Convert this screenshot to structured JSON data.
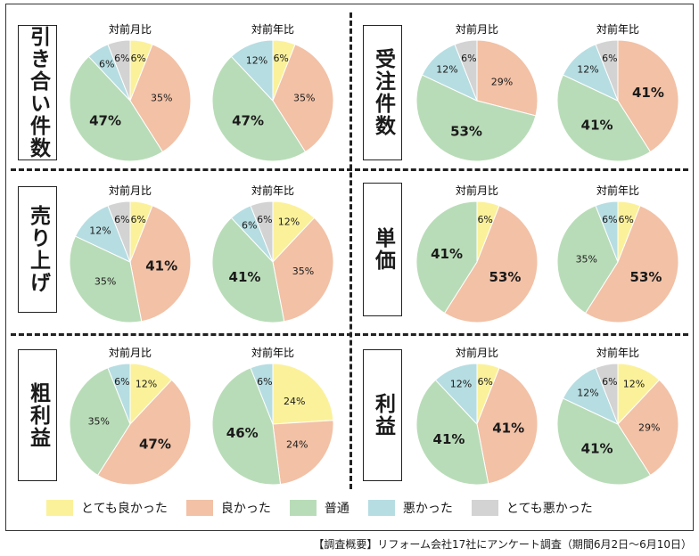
{
  "colors": {
    "very_good": "#fbf19b",
    "good": "#f2c1a6",
    "normal": "#b9dcb8",
    "bad": "#b6dde2",
    "very_bad": "#d3d3d3"
  },
  "legend": [
    {
      "key": "very_good",
      "label": "とても良かった"
    },
    {
      "key": "good",
      "label": "良かった"
    },
    {
      "key": "normal",
      "label": "普通"
    },
    {
      "key": "bad",
      "label": "悪かった"
    },
    {
      "key": "very_bad",
      "label": "とても悪かった"
    }
  ],
  "panels": [
    {
      "title": "引き合い件数"
    },
    {
      "title": "受注件数"
    },
    {
      "title": "売り上げ"
    },
    {
      "title": "単価"
    },
    {
      "title": "粗利益"
    },
    {
      "title": "利益"
    }
  ],
  "footer": "【調査概要】リフォーム会社17社にアンケート調査（期間6月2日〜6月10日）",
  "chart_data": [
    {
      "type": "pie",
      "panel": "引き合い件数",
      "title": "対前月比",
      "categories": [
        "とても良かった",
        "良かった",
        "普通",
        "悪かった",
        "とても悪かった"
      ],
      "values": [
        6,
        35,
        47,
        6,
        6
      ]
    },
    {
      "type": "pie",
      "panel": "引き合い件数",
      "title": "対前年比",
      "categories": [
        "とても良かった",
        "良かった",
        "普通",
        "悪かった",
        "とても悪かった"
      ],
      "values": [
        6,
        35,
        47,
        12,
        0
      ]
    },
    {
      "type": "pie",
      "panel": "受注件数",
      "title": "対前月比",
      "categories": [
        "とても良かった",
        "良かった",
        "普通",
        "悪かった",
        "とても悪かった"
      ],
      "values": [
        0,
        29,
        53,
        12,
        6
      ]
    },
    {
      "type": "pie",
      "panel": "受注件数",
      "title": "対前年比",
      "categories": [
        "とても良かった",
        "良かった",
        "普通",
        "悪かった",
        "とても悪かった"
      ],
      "values": [
        0,
        41,
        41,
        12,
        6
      ]
    },
    {
      "type": "pie",
      "panel": "売り上げ",
      "title": "対前月比",
      "categories": [
        "とても良かった",
        "良かった",
        "普通",
        "悪かった",
        "とても悪かった"
      ],
      "values": [
        6,
        41,
        35,
        12,
        6
      ]
    },
    {
      "type": "pie",
      "panel": "売り上げ",
      "title": "対前年比",
      "categories": [
        "とても良かった",
        "良かった",
        "普通",
        "悪かった",
        "とても悪かった"
      ],
      "values": [
        12,
        35,
        41,
        6,
        6
      ]
    },
    {
      "type": "pie",
      "panel": "単価",
      "title": "対前月比",
      "categories": [
        "とても良かった",
        "良かった",
        "普通",
        "悪かった",
        "とても悪かった"
      ],
      "values": [
        6,
        53,
        41,
        0,
        0
      ]
    },
    {
      "type": "pie",
      "panel": "単価",
      "title": "対前年比",
      "categories": [
        "とても良かった",
        "良かった",
        "普通",
        "悪かった",
        "とても悪かった"
      ],
      "values": [
        6,
        53,
        35,
        6,
        0
      ]
    },
    {
      "type": "pie",
      "panel": "粗利益",
      "title": "対前月比",
      "categories": [
        "とても良かった",
        "良かった",
        "普通",
        "悪かった",
        "とても悪かった"
      ],
      "values": [
        12,
        47,
        35,
        6,
        0
      ]
    },
    {
      "type": "pie",
      "panel": "粗利益",
      "title": "対前年比",
      "categories": [
        "とても良かった",
        "良かった",
        "普通",
        "悪かった",
        "とても悪かった"
      ],
      "values": [
        24,
        24,
        46,
        6,
        0
      ]
    },
    {
      "type": "pie",
      "panel": "利益",
      "title": "対前月比",
      "categories": [
        "とても良かった",
        "良かった",
        "普通",
        "悪かった",
        "とても悪かった"
      ],
      "values": [
        6,
        41,
        41,
        12,
        0
      ]
    },
    {
      "type": "pie",
      "panel": "利益",
      "title": "対前年比",
      "categories": [
        "とても良かった",
        "良かった",
        "普通",
        "悪かった",
        "とても悪かった"
      ],
      "values": [
        12,
        29,
        41,
        12,
        6
      ]
    }
  ]
}
